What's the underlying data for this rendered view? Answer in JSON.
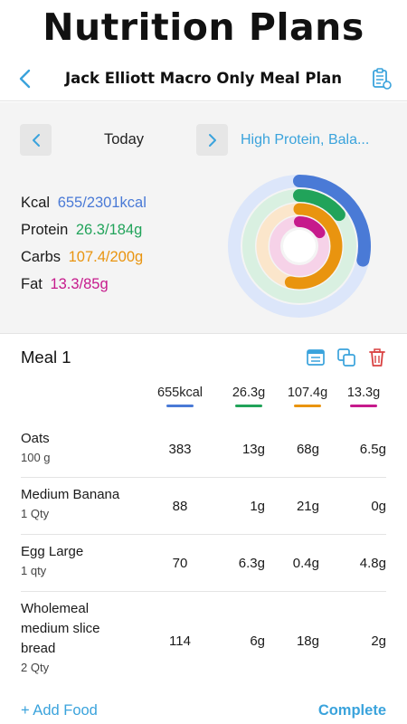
{
  "banner": {
    "title": "Nutrition Plans"
  },
  "nav": {
    "title": "Jack Elliott Macro Only Meal Plan",
    "back_icon": "chevron-left-icon",
    "action_icon": "clipboard-icon"
  },
  "summary": {
    "day_label": "Today",
    "plan_name": "High Protein, Bala...",
    "macros": {
      "kcal": {
        "label": "Kcal",
        "value": "655/2301kcal",
        "consumed": 655,
        "target": 2301,
        "color": "#4a7ad6"
      },
      "protein": {
        "label": "Protein",
        "value": "26.3/184g",
        "consumed": 26.3,
        "target": 184,
        "color": "#21a35a"
      },
      "carbs": {
        "label": "Carbs",
        "value": "107.4/200g",
        "consumed": 107.4,
        "target": 200,
        "color": "#e9940f"
      },
      "fat": {
        "label": "Fat",
        "value": "13.3/85g",
        "consumed": 13.3,
        "target": 85,
        "color": "#c61a8c"
      }
    }
  },
  "meal": {
    "title": "Meal 1",
    "icons": [
      "notes-icon",
      "copy-icon",
      "trash-icon"
    ],
    "totals": {
      "kcal": "655kcal",
      "protein": "26.3g",
      "carbs": "107.4g",
      "fat": "13.3g"
    },
    "foods": [
      {
        "name": "Oats",
        "qty": "100 g",
        "kcal": "383",
        "protein": "13g",
        "carbs": "68g",
        "fat": "6.5g"
      },
      {
        "name": "Medium Banana",
        "qty": "1 Qty",
        "kcal": "88",
        "protein": "1g",
        "carbs": "21g",
        "fat": "0g"
      },
      {
        "name": "Egg Large",
        "qty": "1 qty",
        "kcal": "70",
        "protein": "6.3g",
        "carbs": "0.4g",
        "fat": "4.8g"
      },
      {
        "name": "Wholemeal medium slice bread",
        "qty": "2 Qty",
        "kcal": "114",
        "protein": "6g",
        "carbs": "18g",
        "fat": "2g"
      }
    ]
  },
  "footer": {
    "add_food": "+ Add Food",
    "complete": "Complete"
  }
}
